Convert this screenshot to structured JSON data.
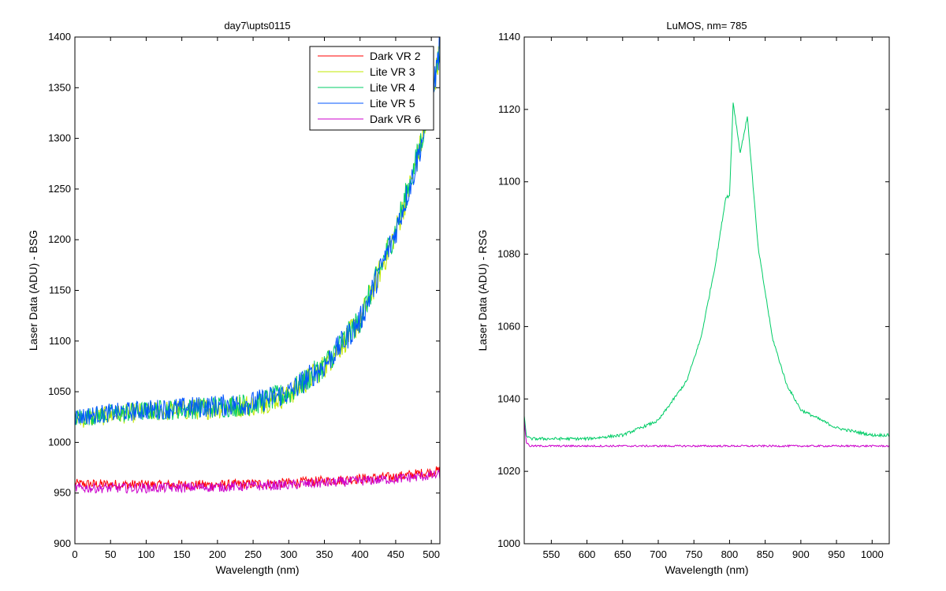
{
  "colors": {
    "dark_vr_2": "#ff0000",
    "lite_vr_3": "#c0e800",
    "lite_vr_4": "#00cc66",
    "lite_vr_5": "#0055ff",
    "dark_vr_6": "#cc00cc"
  },
  "chart_data": [
    {
      "type": "line",
      "title": "day7\\upts0115",
      "xlabel": "Wavelength (nm)",
      "ylabel": "Laser Data (ADU) - BSG",
      "xlim": [
        0,
        512
      ],
      "ylim": [
        900,
        1400
      ],
      "xticks": [
        0,
        50,
        100,
        150,
        200,
        250,
        300,
        350,
        400,
        450,
        500
      ],
      "yticks": [
        900,
        950,
        1000,
        1050,
        1100,
        1150,
        1200,
        1250,
        1300,
        1350,
        1400
      ],
      "grid": false,
      "legend_position": "top-right",
      "series": [
        {
          "name": "Dark VR 2",
          "color": "#ff0000",
          "x": [
            0,
            100,
            200,
            300,
            400,
            450,
            512
          ],
          "y": [
            959,
            958,
            958,
            960,
            964,
            966,
            972
          ]
        },
        {
          "name": "Lite VR 3",
          "color": "#c0e800",
          "x": [
            0,
            50,
            100,
            150,
            200,
            250,
            300,
            350,
            400,
            450,
            475,
            500,
            512
          ],
          "y": [
            1022,
            1027,
            1030,
            1032,
            1034,
            1037,
            1047,
            1075,
            1120,
            1208,
            1265,
            1335,
            1390
          ]
        },
        {
          "name": "Lite VR 4",
          "color": "#00cc66",
          "x": [
            0,
            50,
            100,
            150,
            200,
            250,
            300,
            350,
            400,
            450,
            475,
            500,
            512
          ],
          "y": [
            1024,
            1028,
            1031,
            1033,
            1035,
            1038,
            1048,
            1076,
            1121,
            1210,
            1268,
            1338,
            1392
          ]
        },
        {
          "name": "Lite VR 5",
          "color": "#0055ff",
          "x": [
            0,
            50,
            100,
            150,
            200,
            250,
            300,
            350,
            400,
            450,
            475,
            500,
            512
          ],
          "y": [
            1025,
            1029,
            1032,
            1034,
            1036,
            1039,
            1049,
            1076,
            1120,
            1208,
            1265,
            1335,
            1390
          ]
        },
        {
          "name": "Dark VR 6",
          "color": "#cc00cc",
          "x": [
            0,
            100,
            200,
            300,
            400,
            450,
            512
          ],
          "y": [
            955,
            955,
            956,
            958,
            962,
            964,
            968
          ]
        }
      ]
    },
    {
      "type": "line",
      "title": "LuMOS, nm= 785",
      "xlabel": "Wavelength (nm)",
      "ylabel": "Laser Data (ADU) - RSG",
      "xlim": [
        512,
        1024
      ],
      "ylim": [
        1000,
        1140
      ],
      "xticks": [
        550,
        600,
        650,
        700,
        750,
        800,
        850,
        900,
        950,
        1000
      ],
      "yticks": [
        1000,
        1020,
        1040,
        1060,
        1080,
        1100,
        1120,
        1140
      ],
      "grid": false,
      "series": [
        {
          "color": "#00cc66",
          "x": [
            512,
            515,
            520,
            550,
            600,
            650,
            700,
            740,
            760,
            780,
            795,
            800,
            805,
            815,
            825,
            840,
            860,
            880,
            900,
            950,
            1000,
            1024
          ],
          "y": [
            1035,
            1030,
            1029,
            1029,
            1029,
            1030,
            1034,
            1045,
            1057,
            1077,
            1096,
            1096,
            1122,
            1108,
            1118,
            1082,
            1057,
            1044,
            1037,
            1032,
            1030,
            1030
          ]
        },
        {
          "color": "#cc00cc",
          "x": [
            512,
            515,
            520,
            600,
            700,
            800,
            900,
            1000,
            1024
          ],
          "y": [
            1034,
            1028,
            1027,
            1027,
            1027,
            1027,
            1027,
            1027,
            1027
          ]
        }
      ]
    }
  ]
}
